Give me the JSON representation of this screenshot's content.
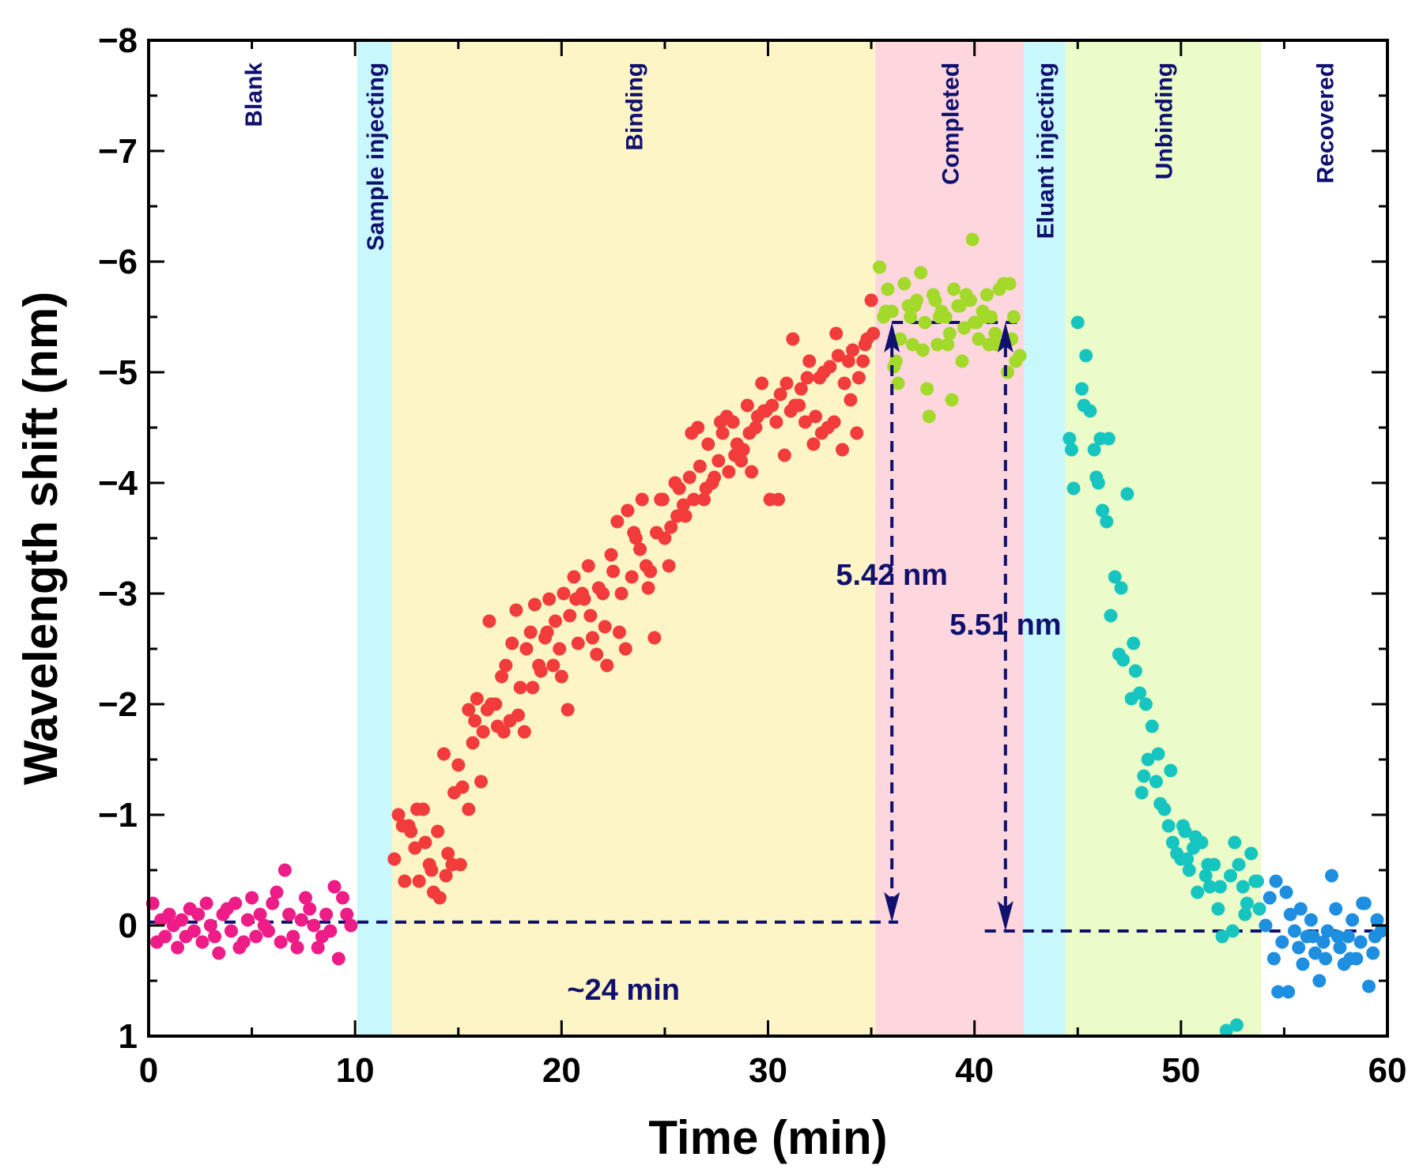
{
  "chart_data": {
    "type": "scatter",
    "title": "",
    "xlabel": "Time (min)",
    "ylabel": "Wavelength shift (nm)",
    "xlim": [
      0,
      60
    ],
    "ylim": [
      1,
      -8
    ],
    "y_axis_inverted": true,
    "x_ticks": [
      0,
      10,
      20,
      30,
      40,
      50,
      60
    ],
    "x_tick_labels": [
      "0",
      "10",
      "20",
      "30",
      "40",
      "50",
      "60"
    ],
    "y_ticks": [
      -8,
      -7,
      -6,
      -5,
      -4,
      -3,
      -2,
      -1,
      0,
      1
    ],
    "y_tick_labels": [
      "−8",
      "−7",
      "−6",
      "−5",
      "−4",
      "−3",
      "−2",
      "−1",
      "0",
      "1"
    ],
    "regions": [
      {
        "label": "Blank",
        "x_start": 0,
        "x_end": 10.1,
        "color": "#ffffff"
      },
      {
        "label": "Sample injecting",
        "x_start": 10.1,
        "x_end": 11.8,
        "color": "#c8f8fc"
      },
      {
        "label": "Binding",
        "x_start": 11.8,
        "x_end": 35.2,
        "color": "#fdf5c6"
      },
      {
        "label": "Completed",
        "x_start": 35.2,
        "x_end": 42.4,
        "color": "#fdd6de"
      },
      {
        "label": "Eluant injecting",
        "x_start": 42.4,
        "x_end": 44.4,
        "color": "#c8f8fc"
      },
      {
        "label": "Unbinding",
        "x_start": 44.4,
        "x_end": 53.9,
        "color": "#ecfcc8"
      },
      {
        "label": "Recovered",
        "x_start": 53.9,
        "x_end": 60,
        "color": "#ffffff"
      }
    ],
    "series": [
      {
        "name": "Blank",
        "color": "#ee1c87",
        "x": [
          0.2,
          0.4,
          0.6,
          0.8,
          1.0,
          1.2,
          1.4,
          1.6,
          1.8,
          2.0,
          2.2,
          2.4,
          2.6,
          2.8,
          3.0,
          3.2,
          3.4,
          3.6,
          3.8,
          4.0,
          4.2,
          4.4,
          4.6,
          4.8,
          5.0,
          5.2,
          5.4,
          5.6,
          5.8,
          6.0,
          6.2,
          6.4,
          6.6,
          6.8,
          7.0,
          7.2,
          7.4,
          7.6,
          7.8,
          8.0,
          8.2,
          8.4,
          8.6,
          8.8,
          9.0,
          9.2,
          9.4,
          9.6,
          9.8
        ],
        "y": [
          -0.2,
          0.15,
          -0.05,
          0.1,
          -0.1,
          0.0,
          0.2,
          -0.05,
          0.1,
          -0.15,
          0.05,
          -0.1,
          0.15,
          -0.2,
          0.0,
          0.1,
          0.25,
          -0.1,
          -0.15,
          0.05,
          -0.2,
          0.2,
          0.15,
          -0.05,
          -0.25,
          0.1,
          -0.1,
          0.0,
          0.05,
          -0.2,
          -0.3,
          0.15,
          -0.5,
          -0.1,
          0.1,
          0.2,
          -0.05,
          -0.25,
          -0.15,
          0.0,
          0.2,
          0.1,
          -0.1,
          0.05,
          -0.35,
          0.3,
          -0.25,
          -0.1,
          0.0
        ]
      },
      {
        "name": "Binding",
        "color": "#f23c3c",
        "x": [
          11.9,
          12.1,
          12.4,
          12.6,
          12.9,
          13.1,
          13.3,
          13.6,
          13.8,
          14.0,
          14.3,
          14.5,
          14.7,
          15.0,
          15.2,
          15.5,
          15.7,
          15.9,
          16.2,
          16.4,
          16.6,
          16.9,
          17.1,
          17.3,
          17.6,
          17.8,
          18.0,
          18.3,
          18.5,
          18.7,
          19.0,
          19.2,
          19.4,
          19.7,
          19.9,
          20.1,
          20.4,
          20.6,
          20.8,
          21.1,
          21.3,
          21.5,
          21.8,
          22.0,
          22.2,
          22.5,
          22.7,
          22.9,
          23.2,
          23.4,
          23.6,
          23.9,
          24.1,
          24.3,
          24.6,
          24.8,
          25.0,
          25.3,
          25.5,
          25.7,
          26.0,
          26.2,
          26.4,
          26.7,
          26.9,
          27.1,
          27.4,
          27.6,
          27.8,
          28.1,
          28.3,
          28.5,
          28.8,
          29.0,
          29.2,
          29.5,
          29.7,
          29.9,
          30.2,
          30.4,
          30.6,
          30.9,
          31.1,
          31.3,
          31.6,
          31.8,
          32.0,
          32.3,
          32.5,
          32.7,
          33.0,
          33.2,
          33.4,
          33.7,
          33.9,
          34.1,
          34.4,
          34.6,
          34.8,
          35.1,
          12.3,
          13.0,
          13.7,
          14.4,
          15.1,
          15.8,
          16.5,
          17.2,
          17.9,
          18.6,
          19.3,
          20.0,
          20.7,
          21.4,
          22.1,
          22.8,
          23.5,
          24.2,
          24.9,
          25.6,
          26.3,
          27.0,
          27.7,
          28.4,
          29.1,
          29.8,
          30.5,
          31.2,
          31.9,
          32.6,
          33.3,
          34.0,
          34.7,
          12.7,
          13.4,
          14.1,
          14.8,
          15.5,
          16.1,
          16.8,
          17.5,
          18.2,
          18.9,
          19.6,
          20.3,
          21.0,
          21.7,
          22.4,
          23.1,
          23.8,
          24.5,
          25.2,
          25.9,
          26.6,
          27.3,
          28.0,
          28.7,
          29.4,
          30.1,
          30.8,
          31.5,
          32.2,
          32.9,
          33.6,
          34.3,
          35.0
        ],
        "y": [
          -0.6,
          -1.0,
          -0.4,
          -0.9,
          -0.7,
          -0.4,
          -1.05,
          -0.55,
          -0.3,
          -0.85,
          -1.55,
          -0.65,
          -0.55,
          -1.45,
          -1.25,
          -1.95,
          -1.65,
          -2.05,
          -1.75,
          -1.95,
          -2.0,
          -1.8,
          -2.25,
          -2.35,
          -2.55,
          -2.85,
          -2.15,
          -2.5,
          -2.65,
          -2.9,
          -2.3,
          -2.6,
          -2.95,
          -2.75,
          -2.5,
          -3.0,
          -2.8,
          -3.15,
          -2.55,
          -2.95,
          -3.25,
          -2.6,
          -3.05,
          -3.0,
          -2.35,
          -3.2,
          -3.65,
          -3.0,
          -3.75,
          -3.15,
          -3.5,
          -3.85,
          -3.25,
          -3.2,
          -3.55,
          -3.85,
          -3.5,
          -3.6,
          -4.0,
          -3.95,
          -3.7,
          -4.05,
          -3.85,
          -4.15,
          -3.85,
          -4.35,
          -4.05,
          -4.2,
          -4.45,
          -4.1,
          -4.55,
          -4.35,
          -4.3,
          -4.7,
          -4.1,
          -4.6,
          -4.9,
          -4.65,
          -4.7,
          -4.55,
          -4.8,
          -4.9,
          -4.65,
          -4.7,
          -4.85,
          -4.55,
          -5.1,
          -4.6,
          -4.95,
          -5.0,
          -5.05,
          -4.55,
          -5.15,
          -4.9,
          -5.1,
          -5.2,
          -4.95,
          -5.1,
          -5.3,
          -5.35,
          -0.9,
          -1.05,
          -0.5,
          -0.45,
          -0.55,
          -1.85,
          -2.75,
          -1.75,
          -1.9,
          -2.15,
          -2.65,
          -2.25,
          -2.95,
          -2.8,
          -2.7,
          -2.65,
          -3.55,
          -3.05,
          -3.85,
          -3.7,
          -4.45,
          -3.95,
          -4.55,
          -4.25,
          -4.45,
          -4.65,
          -3.85,
          -5.3,
          -4.95,
          -4.45,
          -5.35,
          -4.75,
          -5.25,
          -0.85,
          -0.75,
          -0.25,
          -1.2,
          -1.05,
          -1.3,
          -2.0,
          -1.85,
          -1.75,
          -2.35,
          -2.35,
          -1.95,
          -3.0,
          -2.45,
          -3.35,
          -2.5,
          -3.4,
          -2.6,
          -3.25,
          -3.8,
          -4.5,
          -4.0,
          -4.6,
          -4.2,
          -4.5,
          -3.85,
          -4.25,
          -4.7,
          -4.35,
          -4.5,
          -4.3,
          -4.45,
          -5.65
        ]
      },
      {
        "name": "Completed",
        "color": "#a3d92b",
        "x": [
          35.4,
          35.6,
          35.8,
          36.0,
          36.2,
          36.4,
          36.6,
          36.8,
          37.0,
          37.2,
          37.4,
          37.6,
          37.8,
          38.0,
          38.2,
          38.4,
          38.6,
          38.8,
          39.0,
          39.2,
          39.4,
          39.6,
          39.8,
          40.0,
          40.2,
          40.4,
          40.6,
          40.8,
          41.0,
          41.2,
          41.4,
          41.6,
          41.8,
          42.0,
          42.2,
          35.7,
          36.3,
          36.9,
          37.5,
          38.1,
          38.7,
          39.3,
          39.9,
          40.5,
          41.1,
          41.7,
          36.1,
          37.1,
          38.3,
          39.5,
          40.7,
          41.9,
          37.7,
          38.9,
          40.1
        ],
        "y": [
          -5.95,
          -5.5,
          -5.75,
          -5.55,
          -5.1,
          -5.3,
          -5.8,
          -5.6,
          -5.25,
          -5.65,
          -5.9,
          -5.45,
          -4.6,
          -5.7,
          -5.25,
          -5.55,
          -5.5,
          -5.35,
          -5.75,
          -5.6,
          -5.1,
          -5.7,
          -5.65,
          -5.45,
          -5.3,
          -5.55,
          -5.7,
          -5.5,
          -5.35,
          -5.75,
          -5.8,
          -5.0,
          -5.3,
          -5.1,
          -5.15,
          -5.55,
          -4.9,
          -5.5,
          -5.2,
          -5.65,
          -5.25,
          -5.6,
          -6.2,
          -5.5,
          -5.25,
          -5.8,
          -5.05,
          -5.6,
          -5.5,
          -5.4,
          -5.25,
          -5.5,
          -4.85,
          -4.75,
          -5.45
        ]
      },
      {
        "name": "Unbinding",
        "color": "#17c5c0",
        "x": [
          44.6,
          44.8,
          45.0,
          45.2,
          45.4,
          45.6,
          45.8,
          46.0,
          46.2,
          46.4,
          46.6,
          46.8,
          47.0,
          47.2,
          47.4,
          47.6,
          47.8,
          48.0,
          48.2,
          48.4,
          48.6,
          48.8,
          49.0,
          49.2,
          49.4,
          49.6,
          49.8,
          50.0,
          50.2,
          50.4,
          50.6,
          50.8,
          51.0,
          51.2,
          51.4,
          51.6,
          51.8,
          52.0,
          52.2,
          52.4,
          52.6,
          52.8,
          53.0,
          53.2,
          53.4,
          53.6,
          53.8,
          44.7,
          45.3,
          45.9,
          46.5,
          47.1,
          47.7,
          48.3,
          48.9,
          49.5,
          50.1,
          50.7,
          51.3,
          51.9,
          52.5,
          53.1,
          53.7,
          46.1,
          48.1,
          50.3,
          52.7
        ],
        "y": [
          -4.4,
          -3.95,
          -5.45,
          -4.85,
          -5.15,
          -4.65,
          -4.3,
          -4.0,
          -3.75,
          -3.65,
          -2.8,
          -3.15,
          -2.45,
          -2.4,
          -3.9,
          -2.05,
          -2.3,
          -2.1,
          -1.35,
          -1.5,
          -1.8,
          -1.3,
          -1.1,
          -1.05,
          -0.9,
          -0.75,
          -0.65,
          -0.6,
          -0.85,
          -0.5,
          -0.7,
          -0.3,
          -0.75,
          -0.45,
          -0.35,
          -0.55,
          -0.15,
          0.1,
          0.95,
          -0.45,
          -0.75,
          -0.55,
          -0.35,
          -0.2,
          -0.65,
          -0.4,
          -0.15,
          -4.3,
          -4.7,
          -4.05,
          -4.4,
          -3.05,
          -2.55,
          -2.0,
          -1.55,
          -1.4,
          -0.9,
          -0.8,
          -0.55,
          -0.35,
          0.05,
          -0.1,
          -0.4,
          -4.4,
          -1.2,
          -0.6,
          0.9
        ],
        "x_extra": []
      },
      {
        "name": "Recovered",
        "color": "#1e8fe0",
        "x": [
          54.1,
          54.3,
          54.5,
          54.7,
          54.9,
          55.1,
          55.3,
          55.5,
          55.7,
          55.9,
          56.1,
          56.3,
          56.5,
          56.7,
          56.9,
          57.1,
          57.3,
          57.5,
          57.7,
          57.9,
          58.1,
          58.3,
          58.5,
          58.7,
          58.9,
          59.1,
          59.3,
          59.5,
          59.7,
          54.6,
          55.2,
          55.8,
          56.4,
          57.0,
          57.6,
          58.2,
          58.8,
          59.4
        ],
        "y": [
          0.0,
          -0.25,
          0.3,
          0.6,
          0.15,
          -0.3,
          -0.1,
          0.05,
          0.2,
          0.35,
          0.1,
          -0.05,
          0.25,
          0.5,
          0.15,
          0.05,
          -0.45,
          -0.15,
          0.2,
          0.35,
          0.1,
          -0.05,
          0.3,
          0.15,
          -0.2,
          0.55,
          0.25,
          -0.05,
          0.05,
          -0.4,
          0.6,
          -0.15,
          0.1,
          0.3,
          0.1,
          0.3,
          -0.2,
          0.1
        ]
      }
    ],
    "baselines": [
      {
        "name": "initial",
        "x_start": 0,
        "x_end": 36.3,
        "y": -0.03
      },
      {
        "name": "final",
        "x_start": 40.5,
        "x_end": 59.3,
        "y": 0.05
      },
      {
        "name": "completed-top",
        "x_start": 36.0,
        "x_end": 42.1,
        "y": -5.45
      }
    ],
    "arrows": [
      {
        "label": "5.42 nm",
        "x": 36.0,
        "y_from": -5.45,
        "y_to": -0.03
      },
      {
        "label": "5.51 nm",
        "x": 41.5,
        "y_from": -5.45,
        "y_to": 0.05
      }
    ],
    "annotations": [
      {
        "text": "5.42 nm",
        "x": 36.0,
        "y": -3.15
      },
      {
        "text": "5.51 nm",
        "x": 41.5,
        "y": -2.7
      },
      {
        "text": "~24 min",
        "x": 23.0,
        "y": 0.6
      }
    ],
    "colors": {
      "annotation": "#10106e",
      "axis": "#000000"
    }
  }
}
